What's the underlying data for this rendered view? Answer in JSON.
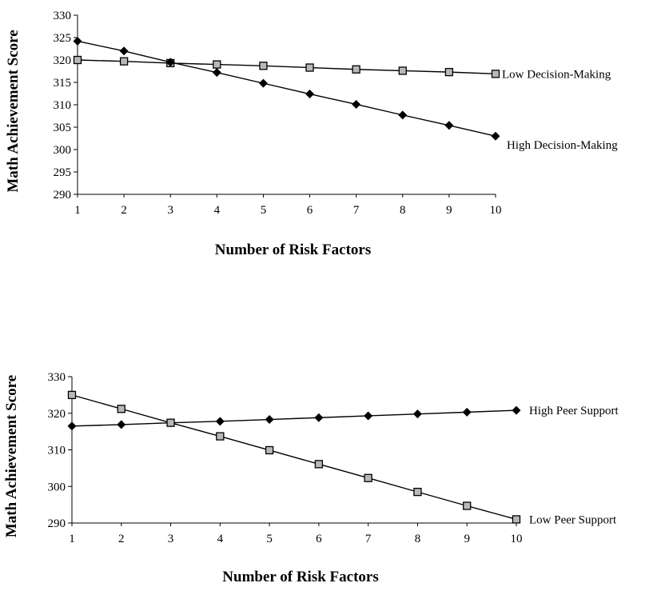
{
  "chart_data": [
    {
      "type": "line",
      "xlabel": "Number of Risk Factors",
      "ylabel": "Math Achievement Score",
      "x": [
        1,
        2,
        3,
        4,
        5,
        6,
        7,
        8,
        9,
        10
      ],
      "xlim": [
        1,
        10
      ],
      "ylim": [
        290,
        330
      ],
      "yticks": [
        290,
        295,
        300,
        305,
        310,
        315,
        320,
        325,
        330
      ],
      "grid": false,
      "legend": "inline labels at line ends",
      "series": [
        {
          "name": "Low Decision-Making",
          "marker": "square",
          "values": [
            320.0,
            319.7,
            319.3,
            319.0,
            318.7,
            318.3,
            317.9,
            317.6,
            317.3,
            316.9
          ]
        },
        {
          "name": "High Decision-Making",
          "marker": "diamond",
          "values": [
            324.2,
            322.0,
            319.5,
            317.2,
            314.8,
            312.4,
            310.1,
            307.7,
            305.4,
            303.0
          ]
        }
      ]
    },
    {
      "type": "line",
      "xlabel": "Number of Risk Factors",
      "ylabel": "Math Achievement Score",
      "x": [
        1,
        2,
        3,
        4,
        5,
        6,
        7,
        8,
        9,
        10
      ],
      "xlim": [
        1,
        10
      ],
      "ylim": [
        290,
        330
      ],
      "yticks": [
        290,
        300,
        310,
        320,
        330
      ],
      "grid": false,
      "legend": "inline labels at line ends",
      "series": [
        {
          "name": "High Peer Support",
          "marker": "diamond",
          "values": [
            316.5,
            316.9,
            317.4,
            317.8,
            318.3,
            318.8,
            319.3,
            319.8,
            320.3,
            320.8
          ]
        },
        {
          "name": "Low Peer Support",
          "marker": "square",
          "values": [
            325.0,
            321.2,
            317.4,
            313.7,
            309.9,
            306.1,
            302.3,
            298.5,
            294.7,
            291.0
          ]
        }
      ]
    }
  ]
}
